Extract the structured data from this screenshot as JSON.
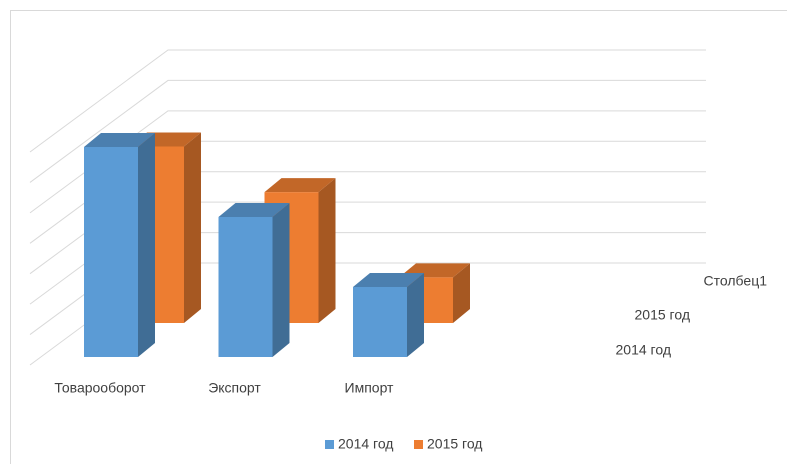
{
  "chart_data": {
    "type": "bar3d",
    "categories": [
      "Товарооборот",
      "Экспорт",
      "Импорт"
    ],
    "series": [
      {
        "name": "2014 год",
        "color": "#5b9bd5",
        "values": [
          6.9,
          4.6,
          2.3
        ]
      },
      {
        "name": "2015 год",
        "color": "#ed7d31",
        "values": [
          5.8,
          4.3,
          1.5
        ]
      },
      {
        "name": "Столбец1",
        "color": "#a5a5a5",
        "values": [
          null,
          null,
          null
        ]
      }
    ],
    "ylim": [
      0,
      7
    ],
    "yticks": [
      0,
      1,
      2,
      3,
      4,
      5,
      6,
      7
    ],
    "grid": true,
    "legend": "bottom"
  }
}
